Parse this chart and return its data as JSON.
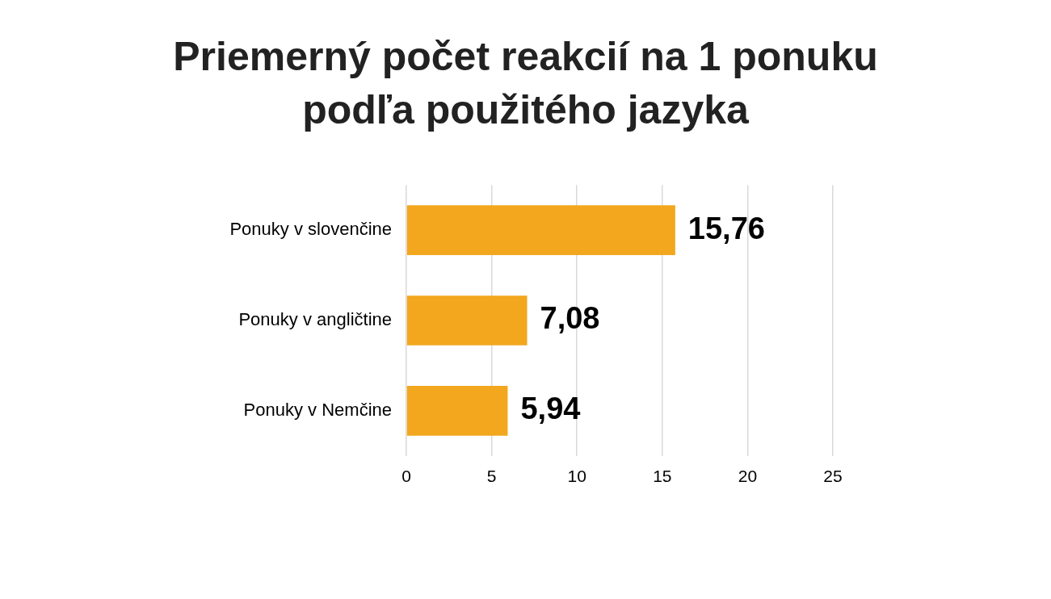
{
  "chart_data": {
    "type": "bar",
    "orientation": "horizontal",
    "title": "Priemerný počet reakcií na 1 ponuku podľa použitého jazyka",
    "categories": [
      "Ponuky v slovenčine",
      "Ponuky v angličtine",
      "Ponuky v Nemčine"
    ],
    "values": [
      15.76,
      7.08,
      5.94
    ],
    "value_labels": [
      "15,76",
      "7,08",
      "5,94"
    ],
    "color": "#f2a71e",
    "xlim": [
      0,
      25
    ],
    "xticks": [
      0,
      5,
      10,
      15,
      20,
      25
    ],
    "grid": "x",
    "legend": false
  }
}
